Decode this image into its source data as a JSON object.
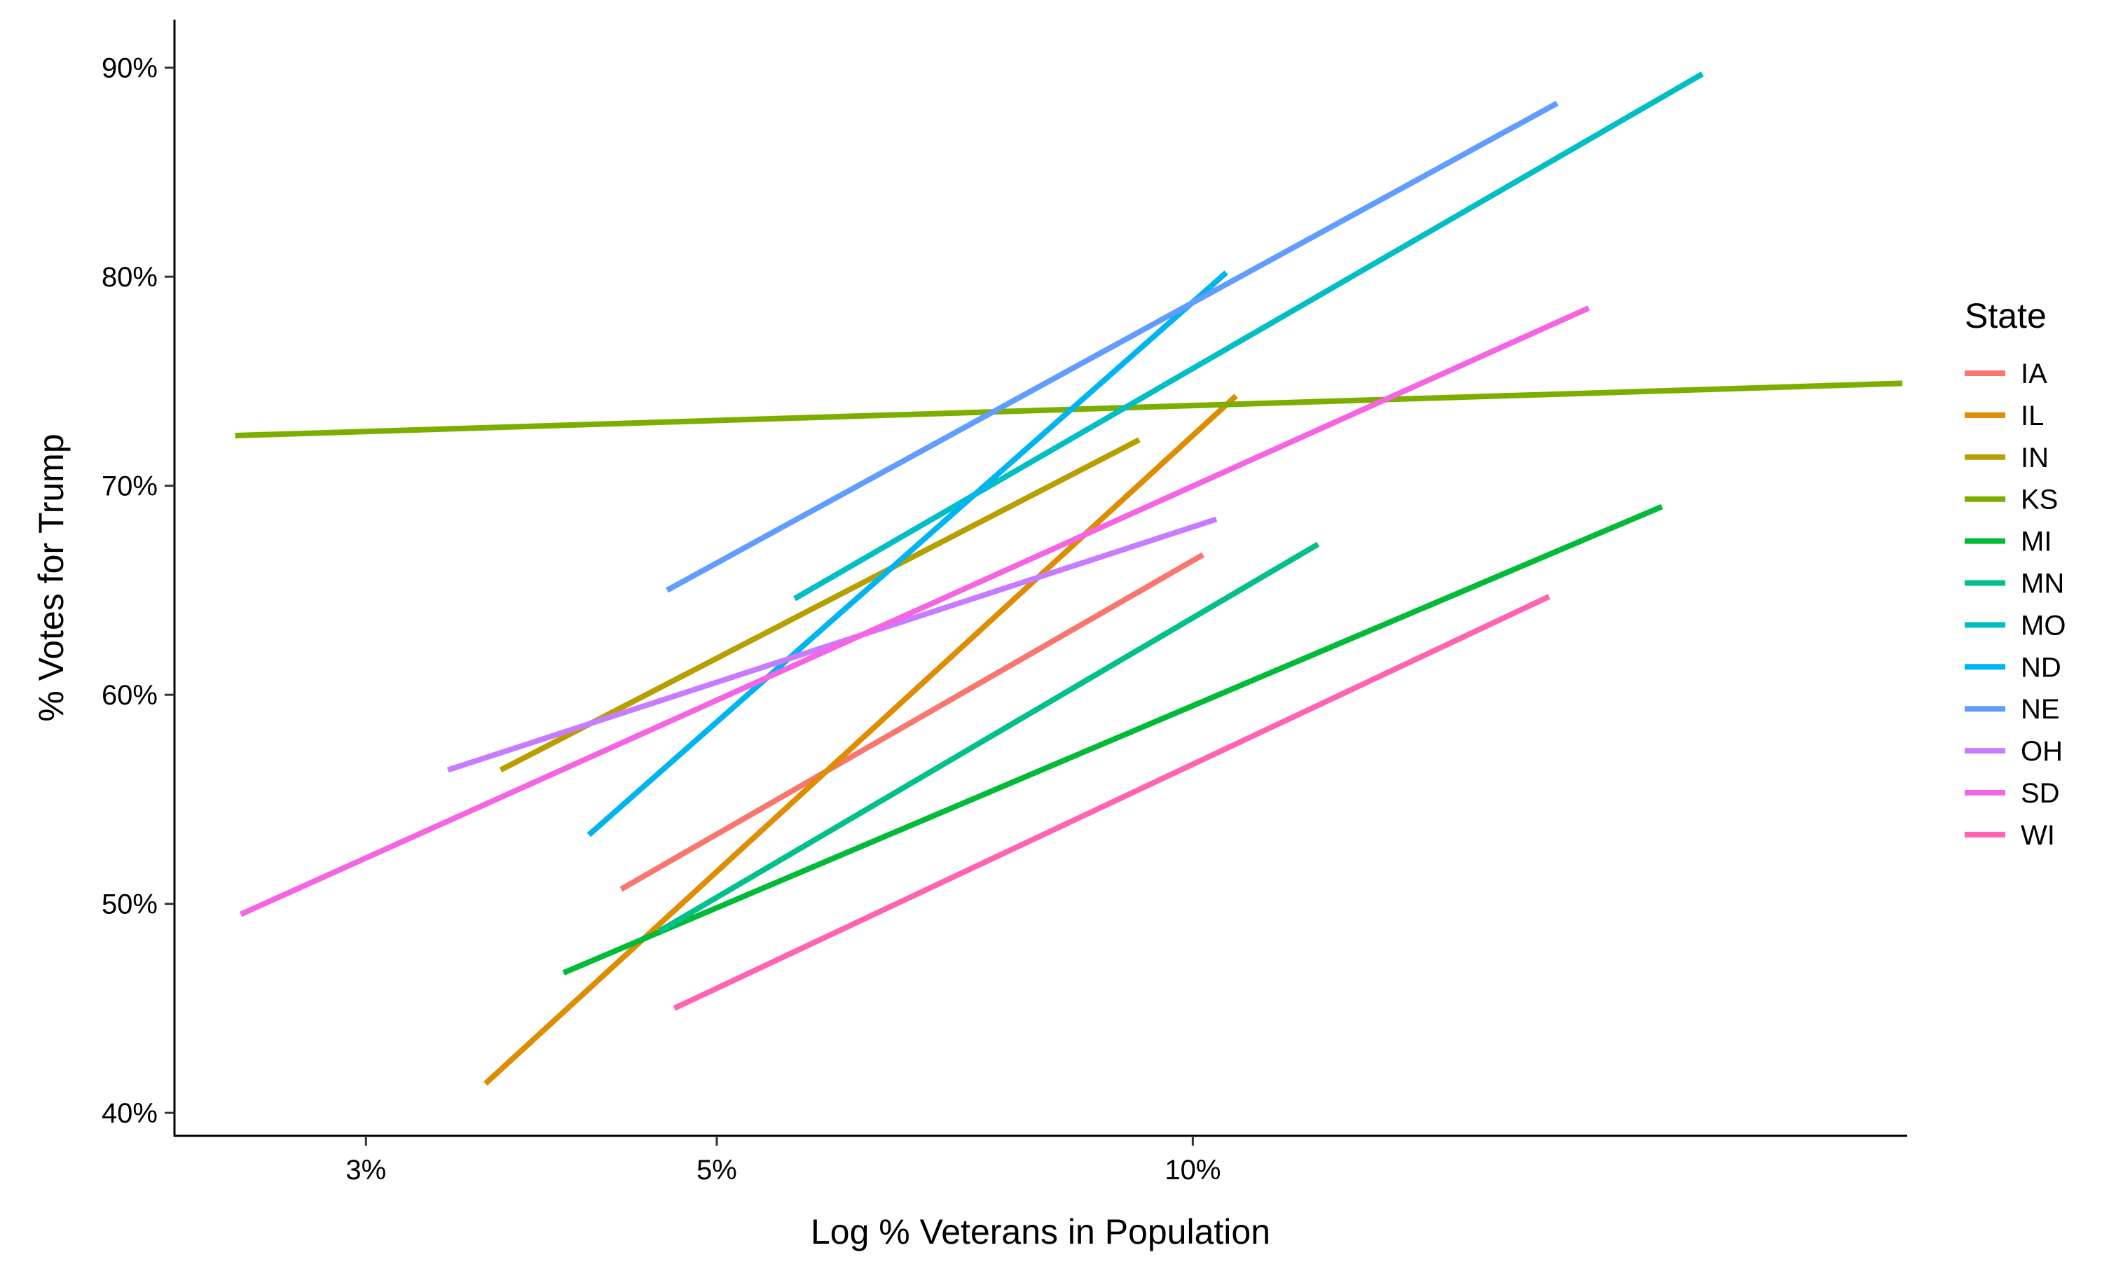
{
  "chart_data": {
    "type": "line",
    "xlabel": "Log % Veterans in Population",
    "ylabel": "% Votes for Trump",
    "x_scale": "log",
    "x_ticks": [
      {
        "value": 3,
        "label": "3%"
      },
      {
        "value": 5,
        "label": "5%"
      },
      {
        "value": 10,
        "label": "10%"
      }
    ],
    "y_ticks": [
      {
        "value": 40,
        "label": "40%"
      },
      {
        "value": 50,
        "label": "50%"
      },
      {
        "value": 60,
        "label": "60%"
      },
      {
        "value": 70,
        "label": "70%"
      },
      {
        "value": 80,
        "label": "80%"
      },
      {
        "value": 90,
        "label": "90%"
      }
    ],
    "xlim": [
      2.27,
      28.3
    ],
    "ylim": [
      38.9,
      92.3
    ],
    "grid": false,
    "legend_title": "State",
    "legend_position": "right",
    "series": [
      {
        "name": "IA",
        "color": "#F8766D",
        "x": [
          4.35,
          10.15
        ],
        "y": [
          50.7,
          66.7
        ]
      },
      {
        "name": "IL",
        "color": "#DE8C00",
        "x": [
          3.57,
          10.65
        ],
        "y": [
          41.4,
          74.3
        ]
      },
      {
        "name": "IN",
        "color": "#B79F00",
        "x": [
          3.65,
          9.25
        ],
        "y": [
          56.4,
          72.2
        ]
      },
      {
        "name": "KS",
        "color": "#7CAE00",
        "x": [
          2.48,
          28.1
        ],
        "y": [
          72.4,
          74.9
        ]
      },
      {
        "name": "MI",
        "color": "#00BA38",
        "x": [
          4.0,
          19.8
        ],
        "y": [
          46.7,
          69.0
        ]
      },
      {
        "name": "MN",
        "color": "#00C08B",
        "x": [
          4.6,
          12.0
        ],
        "y": [
          48.7,
          67.2
        ]
      },
      {
        "name": "MO",
        "color": "#00BFC4",
        "x": [
          5.6,
          21.0
        ],
        "y": [
          64.6,
          89.7
        ]
      },
      {
        "name": "ND",
        "color": "#00B4F0",
        "x": [
          4.15,
          10.5
        ],
        "y": [
          53.3,
          80.2
        ]
      },
      {
        "name": "NE",
        "color": "#619CFF",
        "x": [
          4.65,
          17.0
        ],
        "y": [
          65.0,
          88.3
        ]
      },
      {
        "name": "OH",
        "color": "#C77CFF",
        "x": [
          3.38,
          10.35
        ],
        "y": [
          56.4,
          68.4
        ]
      },
      {
        "name": "SD",
        "color": "#F564E3",
        "x": [
          2.5,
          17.8
        ],
        "y": [
          49.5,
          78.5
        ]
      },
      {
        "name": "WI",
        "color": "#FF64B0",
        "x": [
          4.7,
          16.8
        ],
        "y": [
          45.0,
          64.7
        ]
      }
    ]
  }
}
